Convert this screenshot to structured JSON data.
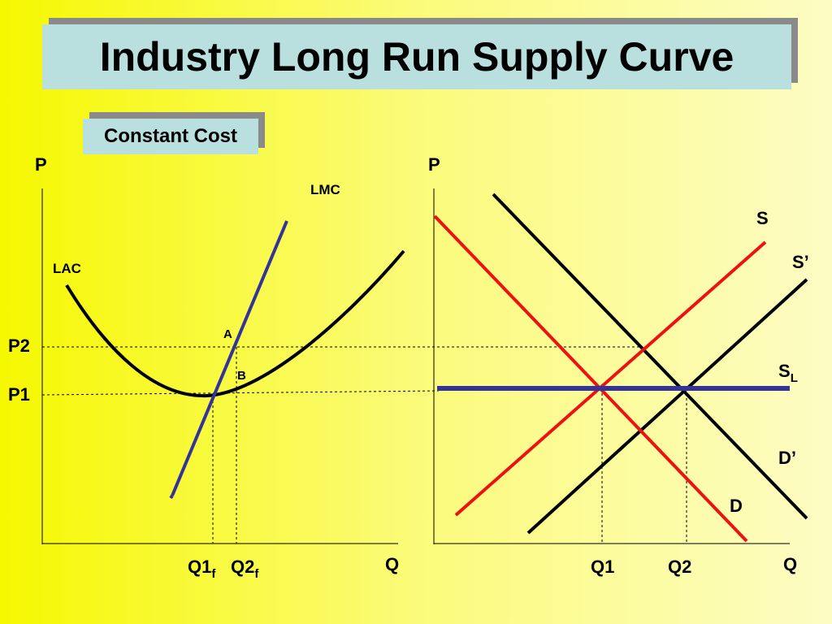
{
  "title": "Industry Long Run Supply Curve",
  "subtitle": "Constant Cost",
  "firm_panel": {
    "y_axis_label": "P",
    "x_axis_label": "Q",
    "curve_labels": {
      "lac": "LAC",
      "lmc": "LMC"
    },
    "point_labels": {
      "a": "A",
      "b": "B"
    },
    "price_labels": {
      "p2": "P2",
      "p1": "P1"
    },
    "quantity_labels": {
      "q1f_main": "Q1",
      "q1f_sub": "f",
      "q2f_main": "Q2",
      "q2f_sub": "f"
    }
  },
  "industry_panel": {
    "y_axis_label": "P",
    "x_axis_label": "Q",
    "curve_labels": {
      "s": "S",
      "s_prime": "S’",
      "sl_main": "S",
      "sl_sub": "L",
      "d_prime": "D’",
      "d": "D"
    },
    "quantity_labels": {
      "q1": "Q1",
      "q2": "Q2"
    }
  },
  "colors": {
    "supply_initial": "#ee1111",
    "demand_initial": "#ee1111",
    "long_run_supply": "#333399",
    "lmc": "#333399",
    "curves": "#000000"
  }
}
